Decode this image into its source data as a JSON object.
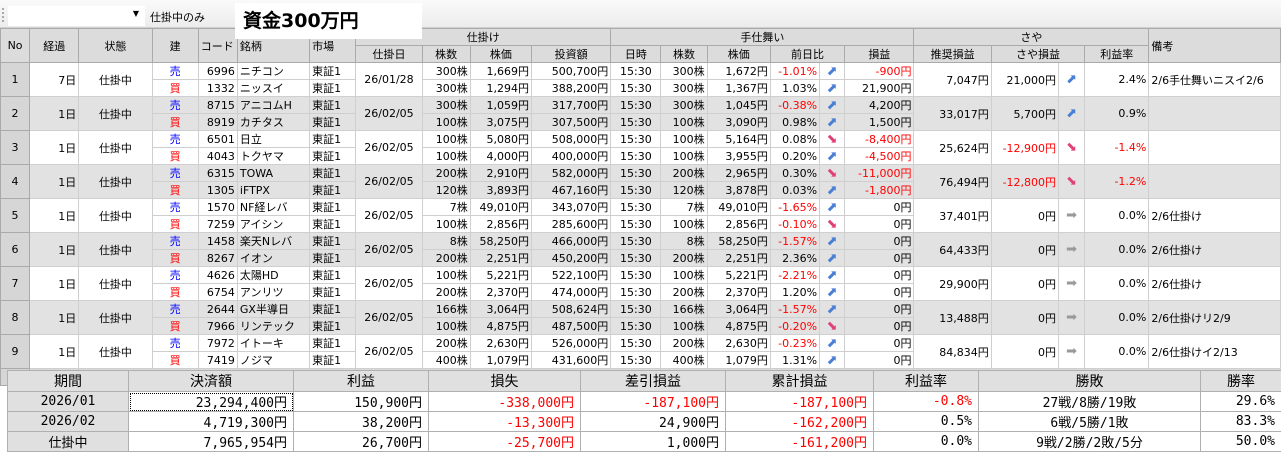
{
  "toolbar": {
    "combo_value": "",
    "filter_label": "仕掛中のみ",
    "title": "資金300万円"
  },
  "headers": {
    "no": "No",
    "elapsed": "経過",
    "status": "状態",
    "side": "建",
    "code": "コード",
    "name": "銘柄",
    "market": "市場",
    "entry_group": "仕掛け",
    "entry_date": "仕掛日",
    "shares": "株数",
    "price": "株価",
    "amount": "投資額",
    "exit_group": "手仕舞い",
    "time": "日時",
    "cur_shares": "株数",
    "cur_price": "株価",
    "change": "前日比",
    "pnl": "損益",
    "spread_group": "さや",
    "recommended": "推奨損益",
    "spread_pnl": "さや損益",
    "rate": "利益率",
    "note": "備考"
  },
  "rows": [
    {
      "no": "1",
      "elapsed": "7日",
      "status": "仕掛中",
      "date": "26/01/28",
      "legs": [
        {
          "side": "売",
          "code": "6996",
          "name": "ニチコン",
          "market": "東証1",
          "shares": "300株",
          "price": "1,669円",
          "amount": "500,700円",
          "time": "15:30",
          "cur_shares": "300株",
          "cur_price": "1,672円",
          "change": "-1.01%",
          "trend": "up",
          "pnl": "-900円"
        },
        {
          "side": "買",
          "code": "1332",
          "name": "ニッスイ",
          "market": "東証1",
          "shares": "300株",
          "price": "1,294円",
          "amount": "388,200円",
          "time": "15:30",
          "cur_shares": "300株",
          "cur_price": "1,367円",
          "change": "1.03%",
          "trend": "up",
          "pnl": "21,900円"
        }
      ],
      "recommended": "7,047円",
      "spread_pnl": "21,000円",
      "spread_trend": "up",
      "rate": "2.4%",
      "note": "2/6手仕舞いニスイ2/6"
    },
    {
      "no": "2",
      "elapsed": "1日",
      "status": "仕掛中",
      "date": "26/02/05",
      "legs": [
        {
          "side": "売",
          "code": "8715",
          "name": "アニコムH",
          "market": "東証1",
          "shares": "300株",
          "price": "1,059円",
          "amount": "317,700円",
          "time": "15:30",
          "cur_shares": "300株",
          "cur_price": "1,045円",
          "change": "-0.38%",
          "trend": "up",
          "pnl": "4,200円"
        },
        {
          "side": "買",
          "code": "8919",
          "name": "カチタス",
          "market": "東証1",
          "shares": "100株",
          "price": "3,075円",
          "amount": "307,500円",
          "time": "15:30",
          "cur_shares": "100株",
          "cur_price": "3,090円",
          "change": "0.98%",
          "trend": "up",
          "pnl": "1,500円"
        }
      ],
      "recommended": "33,017円",
      "spread_pnl": "5,700円",
      "spread_trend": "up",
      "rate": "0.9%",
      "note": ""
    },
    {
      "no": "3",
      "elapsed": "1日",
      "status": "仕掛中",
      "date": "26/02/05",
      "legs": [
        {
          "side": "売",
          "code": "6501",
          "name": "日立",
          "market": "東証1",
          "shares": "100株",
          "price": "5,080円",
          "amount": "508,000円",
          "time": "15:30",
          "cur_shares": "100株",
          "cur_price": "5,164円",
          "change": "0.08%",
          "trend": "down",
          "pnl": "-8,400円"
        },
        {
          "side": "買",
          "code": "4043",
          "name": "トクヤマ",
          "market": "東証1",
          "shares": "100株",
          "price": "4,000円",
          "amount": "400,000円",
          "time": "15:30",
          "cur_shares": "100株",
          "cur_price": "3,955円",
          "change": "0.20%",
          "trend": "up",
          "pnl": "-4,500円"
        }
      ],
      "recommended": "25,624円",
      "spread_pnl": "-12,900円",
      "spread_trend": "down",
      "rate": "-1.4%",
      "note": ""
    },
    {
      "no": "4",
      "elapsed": "1日",
      "status": "仕掛中",
      "date": "26/02/05",
      "legs": [
        {
          "side": "売",
          "code": "6315",
          "name": "TOWA",
          "market": "東証1",
          "shares": "200株",
          "price": "2,910円",
          "amount": "582,000円",
          "time": "15:30",
          "cur_shares": "200株",
          "cur_price": "2,965円",
          "change": "0.30%",
          "trend": "down",
          "pnl": "-11,000円"
        },
        {
          "side": "買",
          "code": "1305",
          "name": "iFTPX",
          "market": "東証1",
          "shares": "120株",
          "price": "3,893円",
          "amount": "467,160円",
          "time": "15:30",
          "cur_shares": "120株",
          "cur_price": "3,878円",
          "change": "0.03%",
          "trend": "up",
          "pnl": "-1,800円"
        }
      ],
      "recommended": "76,494円",
      "spread_pnl": "-12,800円",
      "spread_trend": "down",
      "rate": "-1.2%",
      "note": ""
    },
    {
      "no": "5",
      "elapsed": "1日",
      "status": "仕掛中",
      "date": "26/02/05",
      "legs": [
        {
          "side": "売",
          "code": "1570",
          "name": "NF経レバ",
          "market": "東証1",
          "shares": "7株",
          "price": "49,010円",
          "amount": "343,070円",
          "time": "15:30",
          "cur_shares": "7株",
          "cur_price": "49,010円",
          "change": "-1.65%",
          "trend": "up",
          "pnl": "0円"
        },
        {
          "side": "買",
          "code": "7259",
          "name": "アイシン",
          "market": "東証1",
          "shares": "100株",
          "price": "2,856円",
          "amount": "285,600円",
          "time": "15:30",
          "cur_shares": "100株",
          "cur_price": "2,856円",
          "change": "-0.10%",
          "trend": "down",
          "pnl": "0円"
        }
      ],
      "recommended": "37,401円",
      "spread_pnl": "0円",
      "spread_trend": "flat",
      "rate": "0.0%",
      "note": "2/6仕掛け"
    },
    {
      "no": "6",
      "elapsed": "1日",
      "status": "仕掛中",
      "date": "26/02/05",
      "legs": [
        {
          "side": "売",
          "code": "1458",
          "name": "楽天Nレバ",
          "market": "東証1",
          "shares": "8株",
          "price": "58,250円",
          "amount": "466,000円",
          "time": "15:30",
          "cur_shares": "8株",
          "cur_price": "58,250円",
          "change": "-1.57%",
          "trend": "up",
          "pnl": "0円"
        },
        {
          "side": "買",
          "code": "8267",
          "name": "イオン",
          "market": "東証1",
          "shares": "200株",
          "price": "2,251円",
          "amount": "450,200円",
          "time": "15:30",
          "cur_shares": "200株",
          "cur_price": "2,251円",
          "change": "2.36%",
          "trend": "up",
          "pnl": "0円"
        }
      ],
      "recommended": "64,433円",
      "spread_pnl": "0円",
      "spread_trend": "flat",
      "rate": "0.0%",
      "note": "2/6仕掛け"
    },
    {
      "no": "7",
      "elapsed": "1日",
      "status": "仕掛中",
      "date": "26/02/05",
      "legs": [
        {
          "side": "売",
          "code": "4626",
          "name": "太陽HD",
          "market": "東証1",
          "shares": "100株",
          "price": "5,221円",
          "amount": "522,100円",
          "time": "15:30",
          "cur_shares": "100株",
          "cur_price": "5,221円",
          "change": "-2.21%",
          "trend": "up",
          "pnl": "0円"
        },
        {
          "side": "買",
          "code": "6754",
          "name": "アンリツ",
          "market": "東証1",
          "shares": "200株",
          "price": "2,370円",
          "amount": "474,000円",
          "time": "15:30",
          "cur_shares": "200株",
          "cur_price": "2,370円",
          "change": "1.20%",
          "trend": "up",
          "pnl": "0円"
        }
      ],
      "recommended": "29,900円",
      "spread_pnl": "0円",
      "spread_trend": "flat",
      "rate": "0.0%",
      "note": "2/6仕掛け"
    },
    {
      "no": "8",
      "elapsed": "1日",
      "status": "仕掛中",
      "date": "26/02/05",
      "legs": [
        {
          "side": "売",
          "code": "2644",
          "name": "GX半導日",
          "market": "東証1",
          "shares": "166株",
          "price": "3,064円",
          "amount": "508,624円",
          "time": "15:30",
          "cur_shares": "166株",
          "cur_price": "3,064円",
          "change": "-1.57%",
          "trend": "up",
          "pnl": "0円"
        },
        {
          "side": "買",
          "code": "7966",
          "name": "リンテック",
          "market": "東証1",
          "shares": "100株",
          "price": "4,875円",
          "amount": "487,500円",
          "time": "15:30",
          "cur_shares": "100株",
          "cur_price": "4,875円",
          "change": "-0.20%",
          "trend": "down",
          "pnl": "0円"
        }
      ],
      "recommended": "13,488円",
      "spread_pnl": "0円",
      "spread_trend": "flat",
      "rate": "0.0%",
      "note": "2/6仕掛けリ2/9"
    },
    {
      "no": "9",
      "elapsed": "1日",
      "status": "仕掛中",
      "date": "26/02/05",
      "legs": [
        {
          "side": "売",
          "code": "7972",
          "name": "イトーキ",
          "market": "東証1",
          "shares": "200株",
          "price": "2,630円",
          "amount": "526,000円",
          "time": "15:30",
          "cur_shares": "200株",
          "cur_price": "2,630円",
          "change": "-0.23%",
          "trend": "up",
          "pnl": "0円"
        },
        {
          "side": "買",
          "code": "7419",
          "name": "ノジマ",
          "market": "東証1",
          "shares": "400株",
          "price": "1,079円",
          "amount": "431,600円",
          "time": "15:30",
          "cur_shares": "400株",
          "cur_price": "1,079円",
          "change": "1.31%",
          "trend": "up",
          "pnl": "0円"
        }
      ],
      "recommended": "84,834円",
      "spread_pnl": "0円",
      "spread_trend": "flat",
      "rate": "0.0%",
      "note": "2/6仕掛けイ2/13"
    }
  ],
  "totals": {
    "amount": "7,965,954円",
    "pnl": "1,000円",
    "spread_pnl": "1,000円",
    "spread_trend": "down",
    "rate": "0.0%"
  },
  "summary": {
    "headers": [
      "期間",
      "決済額",
      "利益",
      "損失",
      "差引損益",
      "累計損益",
      "利益率",
      "勝敗",
      "勝率"
    ],
    "rows": [
      [
        "2026/01",
        "23,294,400円",
        "150,900円",
        "-338,000円",
        "-187,100円",
        "-187,100円",
        "-0.8%",
        "27戦/8勝/19敗",
        "29.6%"
      ],
      [
        "2026/02",
        "4,719,300円",
        "38,200円",
        "-13,300円",
        "24,900円",
        "-162,200円",
        "0.5%",
        "6戦/5勝/1敗",
        "83.3%"
      ],
      [
        "仕掛中",
        "7,965,954円",
        "26,700円",
        "-25,700円",
        "1,000円",
        "-161,200円",
        "0.0%",
        "9戦/2勝/2敗/5分",
        "50.0%"
      ]
    ]
  },
  "colors": {
    "sell": "#0000ff",
    "buy": "#ff0000",
    "negative": "#ff0000",
    "arrow_up": "#4a7fd6",
    "arrow_down": "#e0407a",
    "arrow_flat": "#999999",
    "row_alt": "#e2e2e2"
  },
  "icons": {
    "up": "arrow-up-right-icon",
    "down": "arrow-down-right-icon",
    "flat": "arrow-right-icon"
  }
}
